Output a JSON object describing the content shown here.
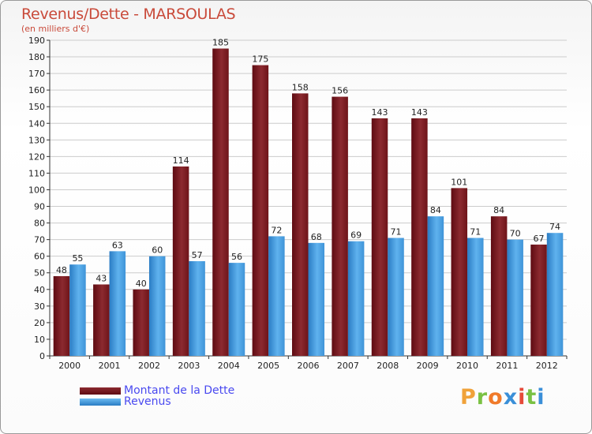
{
  "header": {
    "title": "Revenus/Dette - MARSOULAS",
    "subtitle": "(en milliers d'€)"
  },
  "legend": {
    "debt_label": "Montant de la Dette",
    "revenue_label": "Revenus"
  },
  "logo": {
    "text": "Proxiti"
  },
  "colors": {
    "debt_dark": "#5e0b12",
    "debt_light": "#9a3a40",
    "revenue_dark": "#2a7cc4",
    "revenue_light": "#5fb2ee",
    "grid": "#cccccc",
    "title": "#c94a3a",
    "legend_text": "#4a4af0"
  },
  "chart_data": {
    "type": "bar",
    "title": "Revenus/Dette - MARSOULAS",
    "ylabel": "(en milliers d'€)",
    "xlabel": "",
    "categories": [
      "2000",
      "2001",
      "2002",
      "2003",
      "2004",
      "2005",
      "2006",
      "2007",
      "2008",
      "2009",
      "2010",
      "2011",
      "2012"
    ],
    "series": [
      {
        "name": "Montant de la Dette",
        "values": [
          48,
          43,
          40,
          114,
          185,
          175,
          158,
          156,
          143,
          143,
          101,
          84,
          67
        ]
      },
      {
        "name": "Revenus",
        "values": [
          55,
          63,
          60,
          57,
          56,
          72,
          68,
          69,
          71,
          84,
          71,
          70,
          74
        ]
      }
    ],
    "ylim": [
      0,
      190
    ],
    "yticks": [
      0,
      10,
      20,
      30,
      40,
      50,
      60,
      70,
      80,
      90,
      100,
      110,
      120,
      130,
      140,
      150,
      160,
      170,
      180,
      190
    ],
    "grid": true,
    "legend_position": "bottom-left"
  }
}
